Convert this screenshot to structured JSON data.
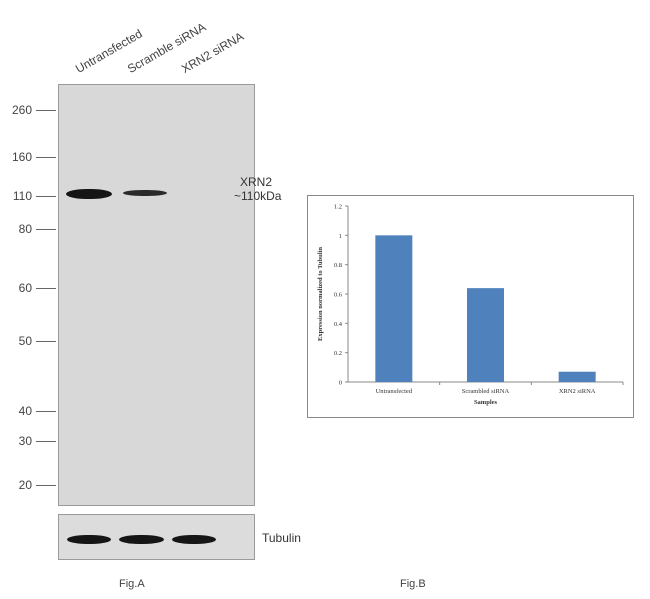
{
  "fig_a": {
    "lanes": [
      "Untransfected",
      "Scramble siRNA",
      "XRN2 siRNA"
    ],
    "mw_markers": [
      "260",
      "160",
      "110",
      "80",
      "60",
      "50",
      "40",
      "30",
      "20"
    ],
    "band_label_line1": "XRN2",
    "band_label_line2": "~110kDa",
    "loading_label": "Tubulin",
    "caption": "Fig.A"
  },
  "fig_b": {
    "caption": "Fig.B"
  },
  "chart_data": {
    "type": "bar",
    "categories": [
      "Untransfected",
      "Scrambled siRNA",
      "XRN2 siRNA"
    ],
    "values": [
      1.0,
      0.64,
      0.07
    ],
    "title": "",
    "xlabel": "Samples",
    "ylabel": "Expression normalized to Tubulin",
    "ylim": [
      0,
      1.2
    ],
    "yticks": [
      "0",
      "0.2",
      "0.4",
      "0.6",
      "0.8",
      "1",
      "1.2"
    ],
    "bar_color": "#4f81bd",
    "grid": false,
    "legend": "none"
  }
}
